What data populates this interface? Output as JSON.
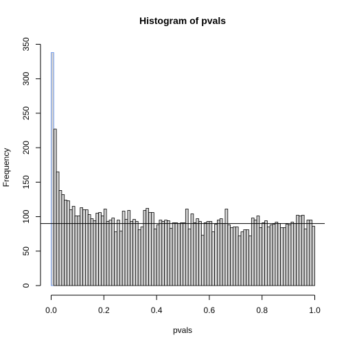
{
  "chart_data": {
    "type": "histogram",
    "title": "Histogram of pvals",
    "xlabel": "pvals",
    "ylabel": "Frequency",
    "xlim": [
      0,
      1
    ],
    "ylim": [
      0,
      350
    ],
    "bin_width": 0.01,
    "x_ticks": [
      "0.0",
      "0.2",
      "0.4",
      "0.6",
      "0.8",
      "1.0"
    ],
    "y_ticks": [
      "0",
      "50",
      "100",
      "150",
      "200",
      "250",
      "300",
      "350"
    ],
    "counts": [
      338,
      227,
      165,
      138,
      132,
      124,
      123,
      110,
      115,
      101,
      101,
      113,
      110,
      110,
      103,
      97,
      94,
      105,
      106,
      101,
      111,
      93,
      95,
      98,
      78,
      95,
      79,
      108,
      96,
      109,
      93,
      96,
      93,
      81,
      85,
      109,
      112,
      106,
      106,
      82,
      88,
      95,
      93,
      95,
      94,
      83,
      91,
      91,
      90,
      91,
      91,
      111,
      82,
      104,
      91,
      97,
      93,
      73,
      91,
      93,
      93,
      78,
      89,
      95,
      97,
      90,
      111,
      88,
      84,
      85,
      85,
      72,
      78,
      81,
      81,
      72,
      98,
      95,
      101,
      84,
      91,
      94,
      85,
      88,
      89,
      92,
      90,
      84,
      84,
      89,
      88,
      92,
      90,
      102,
      101,
      102,
      82,
      95,
      95,
      86
    ],
    "highlight_bin_color": "#5b8def",
    "bar_color": "#d3d3d3",
    "reference_line_y": 90
  }
}
